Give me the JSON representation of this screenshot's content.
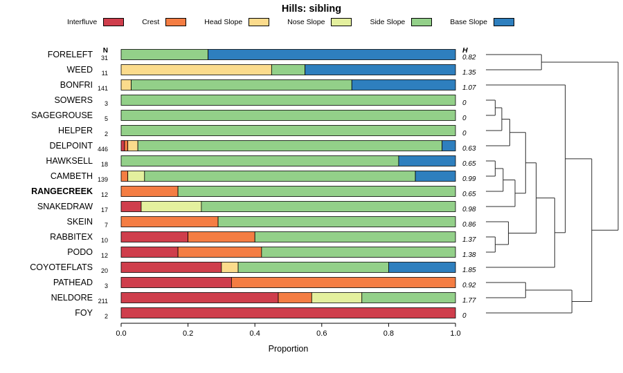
{
  "title": "Hills: sibling",
  "columns": {
    "n_header": "N",
    "h_header": "H"
  },
  "axis": {
    "xlabel": "Proportion",
    "ticks": [
      "0.0",
      "0.2",
      "0.4",
      "0.6",
      "0.8",
      "1.0"
    ],
    "tick_values": [
      0,
      0.2,
      0.4,
      0.6,
      0.8,
      1.0
    ]
  },
  "chart_data": {
    "type": "bar",
    "stacked": true,
    "orientation": "horizontal",
    "title": "Hills: sibling",
    "xlabel": "Proportion",
    "xlim": [
      0,
      1
    ],
    "legend_position": "top",
    "legend": [
      {
        "label": "Interfluve",
        "color": "#cf3e4c"
      },
      {
        "label": "Crest",
        "color": "#f47d43"
      },
      {
        "label": "Head Slope",
        "color": "#fbdb8c"
      },
      {
        "label": "Nose Slope",
        "color": "#e4f09e"
      },
      {
        "label": "Side Slope",
        "color": "#93d089"
      },
      {
        "label": "Base Slope",
        "color": "#2e7fbe"
      }
    ],
    "rows": [
      {
        "name": "FORELEFT",
        "n": 31,
        "h": "0.82",
        "bold": false,
        "values": [
          0,
          0,
          0,
          0,
          0.26,
          0.74
        ]
      },
      {
        "name": "WEED",
        "n": 11,
        "h": "1.35",
        "bold": false,
        "values": [
          0,
          0,
          0.45,
          0,
          0.1,
          0.45
        ]
      },
      {
        "name": "BONFRI",
        "n": 141,
        "h": "1.07",
        "bold": false,
        "values": [
          0,
          0,
          0.03,
          0,
          0.66,
          0.31
        ]
      },
      {
        "name": "SOWERS",
        "n": 3,
        "h": "0",
        "bold": false,
        "values": [
          0,
          0,
          0,
          0,
          1.0,
          0
        ]
      },
      {
        "name": "SAGEGROUSE",
        "n": 5,
        "h": "0",
        "bold": false,
        "values": [
          0,
          0,
          0,
          0,
          1.0,
          0
        ]
      },
      {
        "name": "HELPER",
        "n": 2,
        "h": "0",
        "bold": false,
        "values": [
          0,
          0,
          0,
          0,
          1.0,
          0
        ]
      },
      {
        "name": "DELPOINT",
        "n": 446,
        "h": "0.63",
        "bold": false,
        "values": [
          0.01,
          0.01,
          0.03,
          0,
          0.91,
          0.04
        ]
      },
      {
        "name": "HAWKSELL",
        "n": 18,
        "h": "0.65",
        "bold": false,
        "values": [
          0,
          0,
          0,
          0,
          0.83,
          0.17
        ]
      },
      {
        "name": "CAMBETH",
        "n": 139,
        "h": "0.99",
        "bold": false,
        "values": [
          0,
          0.02,
          0,
          0.05,
          0.81,
          0.12
        ]
      },
      {
        "name": "RANGECREEK",
        "n": 12,
        "h": "0.65",
        "bold": true,
        "values": [
          0,
          0.17,
          0,
          0,
          0.83,
          0
        ]
      },
      {
        "name": "SNAKEDRAW",
        "n": 17,
        "h": "0.98",
        "bold": false,
        "values": [
          0.06,
          0,
          0,
          0.18,
          0.76,
          0
        ]
      },
      {
        "name": "SKEIN",
        "n": 7,
        "h": "0.86",
        "bold": false,
        "values": [
          0,
          0.29,
          0,
          0,
          0.71,
          0
        ]
      },
      {
        "name": "RABBITEX",
        "n": 10,
        "h": "1.37",
        "bold": false,
        "values": [
          0.2,
          0.2,
          0,
          0,
          0.6,
          0
        ]
      },
      {
        "name": "PODO",
        "n": 12,
        "h": "1.38",
        "bold": false,
        "values": [
          0.17,
          0.25,
          0,
          0,
          0.58,
          0
        ]
      },
      {
        "name": "COYOTEFLATS",
        "n": 20,
        "h": "1.85",
        "bold": false,
        "values": [
          0.3,
          0,
          0.05,
          0,
          0.45,
          0.2
        ]
      },
      {
        "name": "PATHEAD",
        "n": 3,
        "h": "0.92",
        "bold": false,
        "values": [
          0.33,
          0.67,
          0,
          0,
          0,
          0
        ]
      },
      {
        "name": "NELDORE",
        "n": 211,
        "h": "1.77",
        "bold": false,
        "values": [
          0.47,
          0.1,
          0,
          0.15,
          0.28,
          0
        ]
      },
      {
        "name": "FOY",
        "n": 2,
        "h": "0",
        "bold": false,
        "values": [
          1.0,
          0,
          0,
          0,
          0,
          0
        ]
      }
    ],
    "dendrogram": {
      "h": 1.0,
      "children": [
        {
          "h": 0.42,
          "children": [
            {
              "leaf": 0
            },
            {
              "leaf": 1
            }
          ]
        },
        {
          "h": 0.8,
          "children": [
            {
              "h": 0.6,
              "children": [
                {
                  "leaf": 2
                },
                {
                  "h": 0.52,
                  "children": [
                    {
                      "h": 0.38,
                      "children": [
                        {
                          "h": 0.3,
                          "children": [
                            {
                              "h": 0.18,
                              "children": [
                                {
                                  "h": 0.12,
                                  "children": [
                                    {
                                      "h": 0.07,
                                      "children": [
                                        {
                                          "leaf": 3
                                        },
                                        {
                                          "leaf": 4
                                        }
                                      ]
                                    },
                                    {
                                      "leaf": 5
                                    }
                                  ]
                                },
                                {
                                  "leaf": 6
                                }
                              ]
                            },
                            {
                              "h": 0.22,
                              "children": [
                                {
                                  "h": 0.13,
                                  "children": [
                                    {
                                      "h": 0.07,
                                      "children": [
                                        {
                                          "leaf": 7
                                        },
                                        {
                                          "leaf": 8
                                        }
                                      ]
                                    },
                                    {
                                      "leaf": 9
                                    }
                                  ]
                                },
                                {
                                  "leaf": 10
                                }
                              ]
                            }
                          ]
                        },
                        {
                          "h": 0.17,
                          "children": [
                            {
                              "leaf": 11
                            },
                            {
                              "h": 0.07,
                              "children": [
                                {
                                  "leaf": 12
                                },
                                {
                                  "leaf": 13
                                }
                              ]
                            }
                          ]
                        }
                      ]
                    },
                    {
                      "leaf": 14
                    }
                  ]
                }
              ]
            },
            {
              "h": 0.65,
              "children": [
                {
                  "h": 0.3,
                  "children": [
                    {
                      "leaf": 15
                    },
                    {
                      "leaf": 16
                    }
                  ]
                },
                {
                  "leaf": 17
                }
              ]
            }
          ]
        }
      ]
    }
  }
}
